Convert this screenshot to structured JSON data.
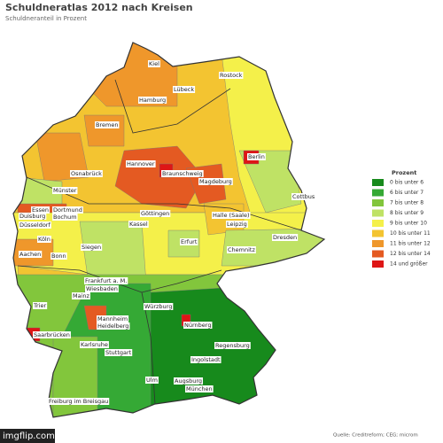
{
  "header": {
    "title": "Schuldneratlas 2012 nach Kreisen",
    "subtitle": "Schuldneranteil in Prozent"
  },
  "legend": {
    "title": "Prozent",
    "items": [
      {
        "label": "0 bis unter 6",
        "color": "#178a1c"
      },
      {
        "label": "6 bis unter 7",
        "color": "#35a935"
      },
      {
        "label": "7 bis unter 8",
        "color": "#82c63c"
      },
      {
        "label": "8 bis unter 9",
        "color": "#bfe265"
      },
      {
        "label": "9 bis unter 10",
        "color": "#f4f04a"
      },
      {
        "label": "10 bis unter 11",
        "color": "#f3c431"
      },
      {
        "label": "11 bis unter 12",
        "color": "#ef972b"
      },
      {
        "label": "12 bis unter 14",
        "color": "#e45a22"
      },
      {
        "label": "14 und größer",
        "color": "#de1616"
      }
    ]
  },
  "cities": [
    "Kiel",
    "Rostock",
    "Lübeck",
    "Hamburg",
    "Bremen",
    "Berlin",
    "Hannover",
    "Osnabrück",
    "Braunschweig",
    "Magdeburg",
    "Cottbus",
    "Münster",
    "Essen",
    "Dortmund",
    "Duisburg",
    "Bochum",
    "Düsseldorf",
    "Göttingen",
    "Kassel",
    "Halle (Saale)",
    "Leipzig",
    "Dresden",
    "Köln",
    "Erfurt",
    "Siegen",
    "Aachen",
    "Bonn",
    "Chemnitz",
    "Frankfurt a. M.",
    "Wiesbaden",
    "Mainz",
    "Trier",
    "Würzburg",
    "Mannheim",
    "Heidelberg",
    "Nürnberg",
    "Saarbrücken",
    "Regensburg",
    "Karlsruhe",
    "Stuttgart",
    "Ingolstadt",
    "Ulm",
    "Augsburg",
    "München",
    "Freiburg im Breisgau"
  ],
  "source": "Quelle: Creditreform; CEG; microm",
  "watermark": "imgflip.com"
}
